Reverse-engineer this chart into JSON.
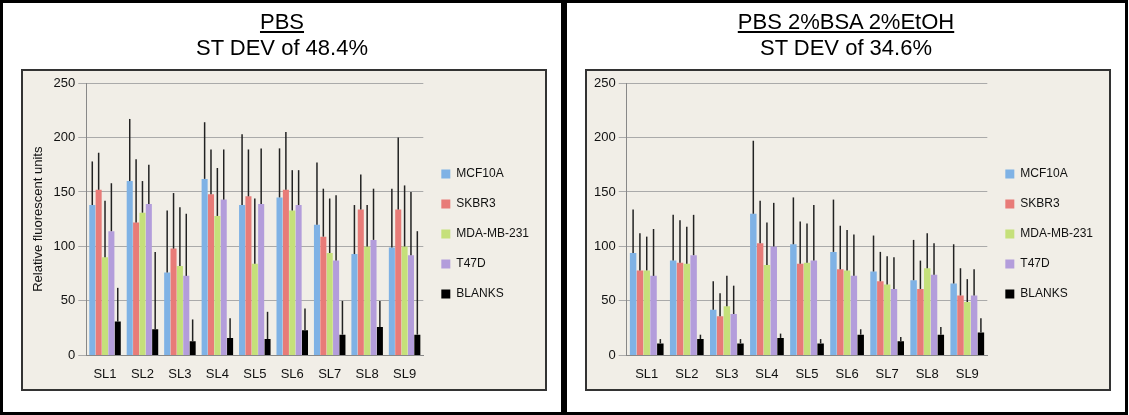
{
  "chart_data": [
    {
      "type": "bar",
      "title": "PBS",
      "subtitle": "ST DEV of 48.4%",
      "ylabel": "Relative fluorescent units",
      "categories": [
        "SL1",
        "SL2",
        "SL3",
        "SL4",
        "SL5",
        "SL6",
        "SL7",
        "SL8",
        "SL9"
      ],
      "ylim": [
        0,
        250
      ],
      "yticks": [
        0,
        50,
        100,
        150,
        200,
        250
      ],
      "grid": "y",
      "legend": "right",
      "series": [
        {
          "name": "MCF10A",
          "color": "#7fb2e5",
          "values": [
            138,
            160,
            76,
            162,
            138,
            145,
            120,
            93,
            99
          ],
          "errors": [
            [
              138,
              178
            ],
            [
              160,
              217
            ],
            [
              76,
              133
            ],
            [
              162,
              214
            ],
            [
              138,
              203
            ],
            [
              145,
              190
            ],
            [
              120,
              177
            ],
            [
              93,
              138
            ],
            [
              99,
              153
            ]
          ]
        },
        {
          "name": "SKBR3",
          "color": "#e87b78",
          "values": [
            152,
            122,
            98,
            148,
            146,
            152,
            109,
            134,
            134
          ],
          "errors": [
            [
              152,
              186
            ],
            [
              122,
              180
            ],
            [
              98,
              149
            ],
            [
              148,
              189
            ],
            [
              146,
              189
            ],
            [
              152,
              205
            ],
            [
              109,
              153
            ],
            [
              134,
              166
            ],
            [
              134,
              200
            ]
          ]
        },
        {
          "name": "MDA-MB-231",
          "color": "#c5e07a",
          "values": [
            90,
            131,
            82,
            128,
            84,
            133,
            94,
            100,
            100
          ],
          "errors": [
            [
              90,
              142
            ],
            [
              131,
              160
            ],
            [
              82,
              136
            ],
            [
              128,
              172
            ],
            [
              84,
              144
            ],
            [
              133,
              170
            ],
            [
              94,
              144
            ],
            [
              100,
              138
            ],
            [
              100,
              156
            ]
          ]
        },
        {
          "name": "T47D",
          "color": "#b39ddb",
          "values": [
            114,
            139,
            73,
            143,
            139,
            138,
            87,
            106,
            92
          ],
          "errors": [
            [
              114,
              158
            ],
            [
              139,
              175
            ],
            [
              73,
              130
            ],
            [
              143,
              189
            ],
            [
              139,
              190
            ],
            [
              138,
              170
            ],
            [
              87,
              147
            ],
            [
              106,
              153
            ],
            [
              92,
              150
            ]
          ]
        },
        {
          "name": "BLANKS",
          "color": "#000000",
          "values": [
            31,
            24,
            13,
            16,
            15,
            23,
            19,
            26,
            19
          ],
          "errors": [
            [
              31,
              62
            ],
            [
              24,
              95
            ],
            [
              13,
              33
            ],
            [
              16,
              34
            ],
            [
              15,
              40
            ],
            [
              23,
              43
            ],
            [
              19,
              50
            ],
            [
              26,
              50
            ],
            [
              19,
              114
            ]
          ]
        }
      ]
    },
    {
      "type": "bar",
      "title": "PBS 2%BSA 2%EtOH",
      "subtitle": "ST DEV of 34.6%",
      "categories": [
        "SL1",
        "SL2",
        "SL3",
        "SL4",
        "SL5",
        "SL6",
        "SL7",
        "SL8",
        "SL9"
      ],
      "ylim": [
        0,
        250
      ],
      "yticks": [
        0,
        50,
        100,
        150,
        200,
        250
      ],
      "grid": "y",
      "legend": "right",
      "series": [
        {
          "name": "MCF10A",
          "color": "#7fb2e5",
          "values": [
            94,
            87,
            42,
            130,
            102,
            95,
            77,
            69,
            66
          ],
          "errors": [
            [
              94,
              134
            ],
            [
              87,
              129
            ],
            [
              42,
              68
            ],
            [
              130,
              197
            ],
            [
              102,
              145
            ],
            [
              95,
              143
            ],
            [
              77,
              110
            ],
            [
              69,
              106
            ],
            [
              66,
              102
            ]
          ]
        },
        {
          "name": "SKBR3",
          "color": "#e87b78",
          "values": [
            78,
            85,
            36,
            103,
            84,
            79,
            68,
            61,
            55
          ],
          "errors": [
            [
              78,
              112
            ],
            [
              85,
              124
            ],
            [
              36,
              57
            ],
            [
              103,
              142
            ],
            [
              84,
              123
            ],
            [
              79,
              119
            ],
            [
              68,
              95
            ],
            [
              61,
              87
            ],
            [
              55,
              80
            ]
          ]
        },
        {
          "name": "MDA-MB-231",
          "color": "#c5e07a",
          "values": [
            78,
            84,
            45,
            83,
            85,
            78,
            65,
            80,
            49
          ],
          "errors": [
            [
              78,
              109
            ],
            [
              84,
              118
            ],
            [
              45,
              73
            ],
            [
              83,
              122
            ],
            [
              85,
              121
            ],
            [
              78,
              115
            ],
            [
              65,
              91
            ],
            [
              80,
              112
            ],
            [
              49,
              70
            ]
          ]
        },
        {
          "name": "T47D",
          "color": "#b39ddb",
          "values": [
            73,
            92,
            38,
            100,
            87,
            73,
            61,
            74,
            55
          ],
          "errors": [
            [
              73,
              116
            ],
            [
              92,
              129
            ],
            [
              38,
              64
            ],
            [
              100,
              140
            ],
            [
              87,
              138
            ],
            [
              73,
              111
            ],
            [
              61,
              90
            ],
            [
              74,
              103
            ],
            [
              55,
              79
            ]
          ]
        },
        {
          "name": "BLANKS",
          "color": "#000000",
          "values": [
            11,
            15,
            11,
            16,
            11,
            19,
            13,
            19,
            21
          ],
          "errors": [
            [
              11,
              15
            ],
            [
              15,
              19
            ],
            [
              11,
              15
            ],
            [
              16,
              20
            ],
            [
              11,
              15
            ],
            [
              19,
              24
            ],
            [
              13,
              17
            ],
            [
              19,
              26
            ],
            [
              21,
              34
            ]
          ]
        }
      ]
    }
  ]
}
